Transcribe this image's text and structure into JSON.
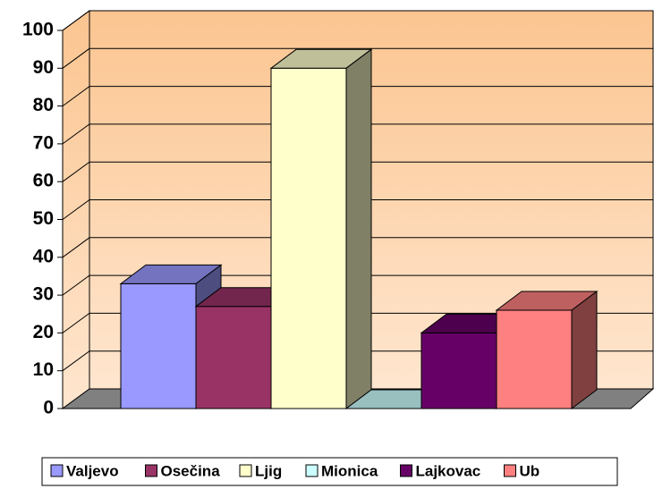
{
  "chart_data": {
    "type": "bar3d",
    "categories": [
      null
    ],
    "series": [
      {
        "name": "Valjevo",
        "color": "#9999ff",
        "values": [
          33
        ]
      },
      {
        "name": "Osečina",
        "color": "#993366",
        "values": [
          27
        ]
      },
      {
        "name": "Ljig",
        "color": "#ffffcc",
        "values": [
          90
        ]
      },
      {
        "name": "Mionica",
        "color": "#ccffff",
        "values": [
          0
        ]
      },
      {
        "name": "Lajkovac",
        "color": "#660066",
        "values": [
          20
        ]
      },
      {
        "name": "Ub",
        "color": "#ff8080",
        "values": [
          26
        ]
      }
    ],
    "ylim": [
      0,
      100
    ],
    "yticks": [
      0,
      10,
      20,
      30,
      40,
      50,
      60,
      70,
      80,
      90,
      100
    ],
    "grid": true,
    "legend": "bottom"
  }
}
